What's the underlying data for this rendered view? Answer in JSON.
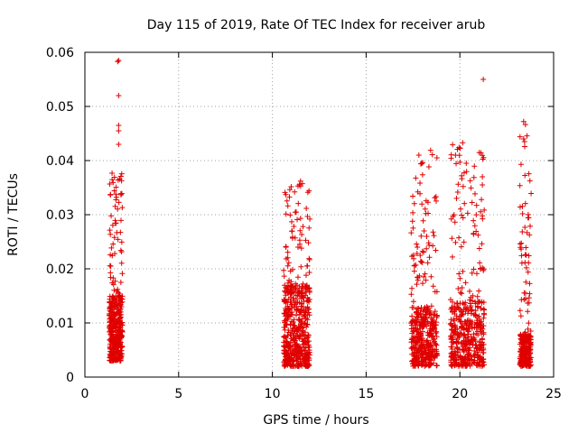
{
  "chart_data": {
    "type": "scatter",
    "title": "Day 115 of 2019, Rate Of TEC Index for receiver arub",
    "xlabel": "GPS time / hours",
    "ylabel": "ROTI / TECUs",
    "xlim": [
      0,
      25
    ],
    "ylim": [
      0,
      0.06
    ],
    "x_ticks": [
      0,
      5,
      10,
      15,
      20,
      25
    ],
    "y_ticks": [
      0,
      0.01,
      0.02,
      0.03,
      0.04,
      0.05,
      0.06
    ],
    "x_tick_labels": [
      "0",
      "5",
      "10",
      "15",
      "20",
      "25"
    ],
    "y_tick_labels": [
      "0",
      "0.01",
      "0.02",
      "0.03",
      "0.04",
      "0.05",
      "0.06"
    ],
    "grid": true,
    "marker": "+",
    "color": "#e00000",
    "clusters": [
      {
        "x_range": [
          1.3,
          2.0
        ],
        "y_range": [
          0.003,
          0.038
        ],
        "dense_y_max": 0.015,
        "count": 420
      },
      {
        "x_range": [
          10.6,
          12.0
        ],
        "y_range": [
          0.002,
          0.036
        ],
        "dense_y_max": 0.017,
        "count": 520
      },
      {
        "x_range": [
          17.4,
          18.8
        ],
        "y_range": [
          0.002,
          0.042
        ],
        "dense_y_max": 0.013,
        "count": 420
      },
      {
        "x_range": [
          19.5,
          21.3
        ],
        "y_range": [
          0.002,
          0.043
        ],
        "dense_y_max": 0.014,
        "count": 460
      },
      {
        "x_range": [
          23.2,
          23.8
        ],
        "y_range": [
          0.002,
          0.047
        ],
        "dense_y_max": 0.008,
        "count": 260
      }
    ],
    "notable_points": [
      {
        "x": 1.8,
        "y": 0.0585
      },
      {
        "x": 1.75,
        "y": 0.0583
      },
      {
        "x": 1.8,
        "y": 0.052
      },
      {
        "x": 1.8,
        "y": 0.0465
      },
      {
        "x": 1.8,
        "y": 0.0455
      },
      {
        "x": 1.8,
        "y": 0.043
      },
      {
        "x": 21.25,
        "y": 0.055
      },
      {
        "x": 23.4,
        "y": 0.0472
      },
      {
        "x": 23.4,
        "y": 0.044
      },
      {
        "x": 23.45,
        "y": 0.0435
      },
      {
        "x": 20.15,
        "y": 0.0433
      },
      {
        "x": 11.5,
        "y": 0.0362
      },
      {
        "x": 21.2,
        "y": 0.037
      },
      {
        "x": 21.2,
        "y": 0.0355
      },
      {
        "x": 21.15,
        "y": 0.0328
      },
      {
        "x": 21.2,
        "y": 0.0298
      }
    ]
  }
}
